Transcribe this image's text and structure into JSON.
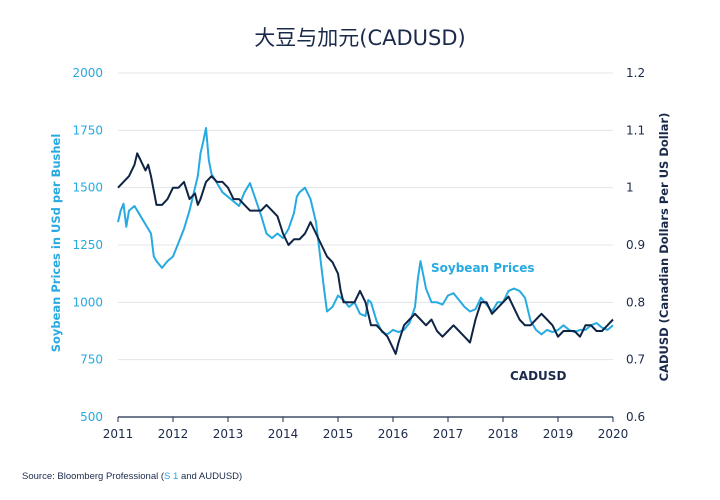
{
  "colors": {
    "soybean": "#27aae1",
    "cadusd": "#0f2444",
    "grid": "#e3e6ea",
    "text": "#1b2a4a"
  },
  "source": {
    "prefix": "Source: Bloomberg Professional (",
    "highlight": "S 1",
    "suffix": " and AUDUSD)"
  },
  "chart_data": {
    "type": "line",
    "title": "大豆与加元(CADUSD)",
    "ylabel": "Soybean Prices in USd per Bushel",
    "ylabel_right": "CADUSD (Canadian Dollars Per US Dollar)",
    "x_ticks": [
      "2011",
      "2012",
      "2013",
      "2014",
      "2015",
      "2016",
      "2017",
      "2018",
      "2019",
      "2020"
    ],
    "xlim": [
      2011,
      2020
    ],
    "ylim": [
      500,
      2000
    ],
    "ylim_right": [
      0.6,
      1.2
    ],
    "y_ticks": [
      "2000",
      "1750",
      "1500",
      "1250",
      "1000",
      "750",
      "500"
    ],
    "y_ticks_right": [
      "1.2",
      "1.1",
      "1",
      "0.9",
      "0.8",
      "0.7",
      "0.6"
    ],
    "annotations": {
      "soybean": "Soybean Prices",
      "cadusd": "CADUSD"
    },
    "grid": true,
    "series": [
      {
        "name": "Soybean Prices",
        "axis": "left",
        "x": [
          2011.0,
          2011.05,
          2011.1,
          2011.15,
          2011.2,
          2011.3,
          2011.4,
          2011.5,
          2011.6,
          2011.65,
          2011.7,
          2011.8,
          2011.9,
          2012.0,
          2012.1,
          2012.2,
          2012.3,
          2012.4,
          2012.45,
          2012.5,
          2012.55,
          2012.6,
          2012.65,
          2012.7,
          2012.8,
          2012.9,
          2013.0,
          2013.1,
          2013.2,
          2013.3,
          2013.4,
          2013.5,
          2013.6,
          2013.7,
          2013.8,
          2013.9,
          2014.0,
          2014.1,
          2014.2,
          2014.25,
          2014.3,
          2014.4,
          2014.5,
          2014.6,
          2014.65,
          2014.7,
          2014.75,
          2014.8,
          2014.9,
          2015.0,
          2015.1,
          2015.2,
          2015.3,
          2015.4,
          2015.5,
          2015.55,
          2015.6,
          2015.7,
          2015.8,
          2015.9,
          2016.0,
          2016.1,
          2016.2,
          2016.3,
          2016.4,
          2016.45,
          2016.5,
          2016.6,
          2016.7,
          2016.8,
          2016.9,
          2017.0,
          2017.1,
          2017.2,
          2017.3,
          2017.4,
          2017.5,
          2017.6,
          2017.7,
          2017.8,
          2017.9,
          2018.0,
          2018.1,
          2018.2,
          2018.3,
          2018.4,
          2018.5,
          2018.6,
          2018.7,
          2018.8,
          2018.9,
          2019.0,
          2019.1,
          2019.2,
          2019.3,
          2019.4,
          2019.5,
          2019.6,
          2019.7,
          2019.8,
          2019.9,
          2020.0
        ],
        "values": [
          1350,
          1400,
          1430,
          1330,
          1400,
          1420,
          1380,
          1340,
          1300,
          1200,
          1180,
          1150,
          1180,
          1200,
          1260,
          1320,
          1400,
          1500,
          1550,
          1650,
          1700,
          1760,
          1620,
          1560,
          1520,
          1480,
          1460,
          1440,
          1420,
          1480,
          1520,
          1450,
          1380,
          1300,
          1280,
          1300,
          1280,
          1320,
          1390,
          1460,
          1480,
          1500,
          1450,
          1350,
          1250,
          1150,
          1050,
          960,
          980,
          1030,
          1010,
          980,
          1000,
          950,
          940,
          1010,
          1000,
          920,
          870,
          860,
          880,
          870,
          880,
          910,
          980,
          1100,
          1180,
          1060,
          1000,
          1000,
          990,
          1030,
          1040,
          1010,
          980,
          960,
          970,
          1020,
          990,
          960,
          1000,
          1000,
          1050,
          1060,
          1050,
          1020,
          920,
          880,
          860,
          880,
          870,
          880,
          900,
          880,
          870,
          880,
          880,
          900,
          910,
          890,
          880,
          900
        ]
      },
      {
        "name": "CADUSD",
        "axis": "right",
        "x": [
          2011.0,
          2011.1,
          2011.2,
          2011.3,
          2011.35,
          2011.4,
          2011.5,
          2011.55,
          2011.6,
          2011.7,
          2011.8,
          2011.9,
          2012.0,
          2012.1,
          2012.2,
          2012.3,
          2012.4,
          2012.45,
          2012.5,
          2012.6,
          2012.7,
          2012.8,
          2012.9,
          2013.0,
          2013.1,
          2013.2,
          2013.3,
          2013.4,
          2013.5,
          2013.6,
          2013.7,
          2013.8,
          2013.9,
          2014.0,
          2014.1,
          2014.2,
          2014.3,
          2014.4,
          2014.5,
          2014.6,
          2014.7,
          2014.8,
          2014.9,
          2015.0,
          2015.05,
          2015.1,
          2015.2,
          2015.3,
          2015.4,
          2015.5,
          2015.6,
          2015.7,
          2015.8,
          2015.9,
          2016.0,
          2016.05,
          2016.1,
          2016.2,
          2016.3,
          2016.4,
          2016.5,
          2016.6,
          2016.7,
          2016.8,
          2016.9,
          2017.0,
          2017.1,
          2017.2,
          2017.3,
          2017.4,
          2017.5,
          2017.6,
          2017.7,
          2017.8,
          2017.9,
          2018.0,
          2018.1,
          2018.2,
          2018.3,
          2018.4,
          2018.5,
          2018.6,
          2018.7,
          2018.8,
          2018.9,
          2019.0,
          2019.1,
          2019.2,
          2019.3,
          2019.4,
          2019.5,
          2019.6,
          2019.7,
          2019.8,
          2019.9,
          2020.0
        ],
        "values": [
          1.0,
          1.01,
          1.02,
          1.04,
          1.06,
          1.05,
          1.03,
          1.04,
          1.02,
          0.97,
          0.97,
          0.98,
          1.0,
          1.0,
          1.01,
          0.98,
          0.99,
          0.97,
          0.98,
          1.01,
          1.02,
          1.01,
          1.01,
          1.0,
          0.98,
          0.98,
          0.97,
          0.96,
          0.96,
          0.96,
          0.97,
          0.96,
          0.95,
          0.92,
          0.9,
          0.91,
          0.91,
          0.92,
          0.94,
          0.92,
          0.9,
          0.88,
          0.87,
          0.85,
          0.82,
          0.8,
          0.8,
          0.8,
          0.82,
          0.8,
          0.76,
          0.76,
          0.75,
          0.74,
          0.72,
          0.71,
          0.73,
          0.76,
          0.77,
          0.78,
          0.77,
          0.76,
          0.77,
          0.75,
          0.74,
          0.75,
          0.76,
          0.75,
          0.74,
          0.73,
          0.77,
          0.8,
          0.8,
          0.78,
          0.79,
          0.8,
          0.81,
          0.79,
          0.77,
          0.76,
          0.76,
          0.77,
          0.78,
          0.77,
          0.76,
          0.74,
          0.75,
          0.75,
          0.75,
          0.74,
          0.76,
          0.76,
          0.75,
          0.75,
          0.76,
          0.77
        ]
      }
    ]
  }
}
